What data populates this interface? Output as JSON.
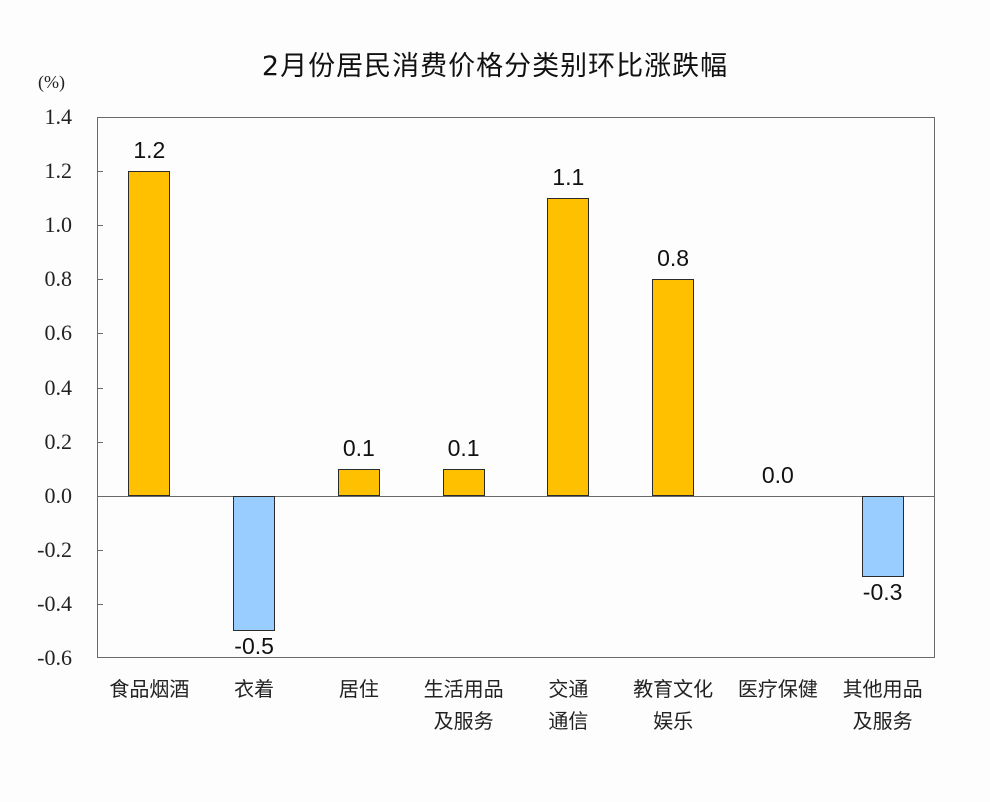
{
  "chart_data": {
    "type": "bar",
    "title": "2月份居民消费价格分类别环比涨跌幅",
    "ylabel": "(%)",
    "xlabel": "",
    "ylim": [
      -0.6,
      1.4
    ],
    "yticks": [
      "1.4",
      "1.2",
      "1.0",
      "0.8",
      "0.6",
      "0.4",
      "0.2",
      "0.0",
      "-0.2",
      "-0.4",
      "-0.6"
    ],
    "grid": false,
    "legend": null,
    "categories": [
      "食品烟酒",
      "衣着",
      "居住",
      "生活用品及服务",
      "交通通信",
      "教育文化娱乐",
      "医疗保健",
      "其他用品及服务"
    ],
    "category_lines": [
      [
        "食品烟酒"
      ],
      [
        "衣着"
      ],
      [
        "居住"
      ],
      [
        "生活用品",
        "及服务"
      ],
      [
        "交通",
        "通信"
      ],
      [
        "教育文化",
        "娱乐"
      ],
      [
        "医疗保健"
      ],
      [
        "其他用品",
        "及服务"
      ]
    ],
    "values": [
      1.2,
      -0.5,
      0.1,
      0.1,
      1.1,
      0.8,
      0.0,
      -0.3
    ],
    "value_labels": [
      "1.2",
      "-0.5",
      "0.1",
      "0.1",
      "1.1",
      "0.8",
      "0.0",
      "-0.3"
    ],
    "colors": {
      "positive": "#FFC000",
      "negative": "#99CCFF",
      "edge": "#2b2b2b",
      "axis": "#6a6a6a"
    }
  }
}
